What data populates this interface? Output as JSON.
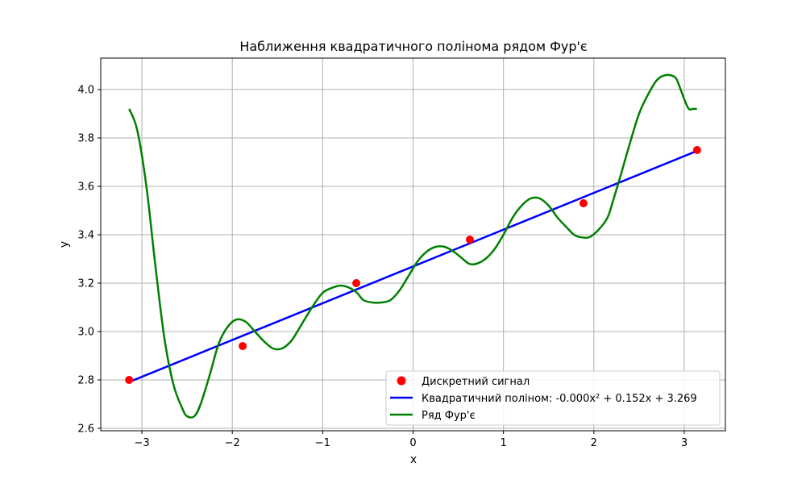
{
  "chart_data": {
    "type": "line",
    "title": "Наближення квадратичного полінома рядом Фур'є",
    "xlabel": "x",
    "ylabel": "y",
    "xlim": [
      -3.455,
      3.455
    ],
    "ylim": [
      2.59,
      4.13
    ],
    "grid": true,
    "legend_position": "lower-right",
    "x_ticks": [
      -3,
      -2,
      -1,
      0,
      1,
      2,
      3
    ],
    "x_tick_labels": [
      "−3",
      "−2",
      "−1",
      "0",
      "1",
      "2",
      "3"
    ],
    "y_ticks": [
      2.6,
      2.8,
      3.0,
      3.2,
      3.4,
      3.6,
      3.8,
      4.0
    ],
    "y_tick_labels": [
      "2.6",
      "2.8",
      "3.0",
      "3.2",
      "3.4",
      "3.6",
      "3.8",
      "4.0"
    ],
    "scatter": {
      "name": "Дискретний сигнал",
      "color": "#ff0000",
      "x": [
        -3.1416,
        -1.885,
        -0.6283,
        0.6283,
        1.885,
        3.1416
      ],
      "y": [
        2.8,
        2.94,
        3.2,
        3.38,
        3.53,
        3.75
      ]
    },
    "polynomial": {
      "name": "Квадратичний поліном: -0.000x² + 0.152x + 3.269",
      "color": "#0000ff",
      "coefficients": {
        "a": 0.0,
        "b": 0.152,
        "c": 3.269
      },
      "x_range": [
        -3.1416,
        3.1416
      ]
    },
    "fourier": {
      "name": "Ряд Фур'є",
      "color": "#008000",
      "x": [
        -3.14,
        -3.05,
        -2.95,
        -2.85,
        -2.75,
        -2.65,
        -2.55,
        -2.5,
        -2.42,
        -2.35,
        -2.25,
        -2.15,
        -2.05,
        -1.95,
        -1.85,
        -1.75,
        -1.65,
        -1.55,
        -1.45,
        -1.35,
        -1.28,
        -1.2,
        -1.1,
        -1.0,
        -0.9,
        -0.8,
        -0.7,
        -0.62,
        -0.55,
        -0.45,
        -0.35,
        -0.25,
        -0.15,
        -0.05,
        0.05,
        0.15,
        0.25,
        0.35,
        0.45,
        0.55,
        0.62,
        0.7,
        0.8,
        0.9,
        1.0,
        1.1,
        1.2,
        1.3,
        1.4,
        1.5,
        1.6,
        1.7,
        1.78,
        1.85,
        1.95,
        2.05,
        2.15,
        2.22,
        2.3,
        2.4,
        2.5,
        2.6,
        2.7,
        2.8,
        2.9,
        2.95,
        3.0,
        3.05,
        3.1,
        3.14
      ],
      "y": [
        3.92,
        3.83,
        3.6,
        3.27,
        2.97,
        2.78,
        2.68,
        2.65,
        2.65,
        2.7,
        2.82,
        2.95,
        3.02,
        3.05,
        3.04,
        3.0,
        2.96,
        2.93,
        2.93,
        2.96,
        3.0,
        3.05,
        3.11,
        3.16,
        3.18,
        3.19,
        3.18,
        3.16,
        3.13,
        3.12,
        3.12,
        3.13,
        3.17,
        3.23,
        3.29,
        3.33,
        3.35,
        3.35,
        3.33,
        3.3,
        3.28,
        3.28,
        3.3,
        3.34,
        3.4,
        3.47,
        3.52,
        3.55,
        3.55,
        3.52,
        3.47,
        3.43,
        3.4,
        3.39,
        3.39,
        3.42,
        3.47,
        3.55,
        3.65,
        3.78,
        3.9,
        3.98,
        4.04,
        4.06,
        4.05,
        4.01,
        3.96,
        3.92,
        3.92,
        3.92
      ]
    }
  }
}
